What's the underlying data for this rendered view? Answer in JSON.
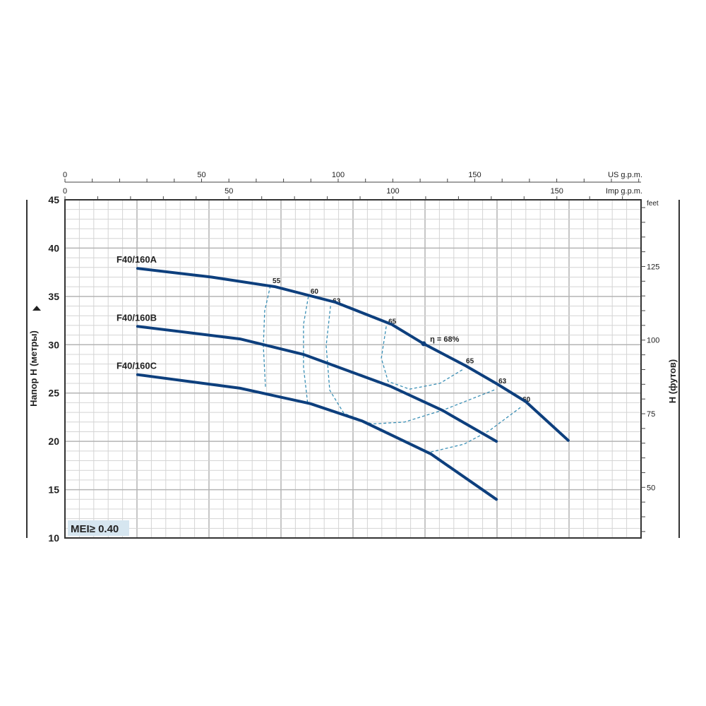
{
  "chart_data": {
    "type": "line",
    "title": "",
    "xlabel_top_1": "US g.p.m.",
    "xlabel_top_2": "Imp g.p.m.",
    "ylabel_left": "Напор H (метры)",
    "ylabel_right": "H (футов)",
    "ylabel_right_unit": "feet",
    "x_unit": "US g.p.m.",
    "xlim": [
      0,
      211
    ],
    "ylim": [
      10,
      45
    ],
    "grid": true,
    "us_gpm_ticks": [
      "0",
      "50",
      "100",
      "150"
    ],
    "imp_gpm_ticks": [
      "0",
      "50",
      "100",
      "150"
    ],
    "y_ticks": [
      "10",
      "15",
      "20",
      "25",
      "30",
      "35",
      "40",
      "45"
    ],
    "feet_ticks": [
      "50",
      "75",
      "100",
      "125"
    ],
    "series": [
      {
        "name": "F40/160A",
        "points": [
          [
            26.6,
            37.9
          ],
          [
            53.7,
            37.0
          ],
          [
            77,
            36.0
          ],
          [
            99,
            34.4
          ],
          [
            119.6,
            32.1
          ],
          [
            131.3,
            30.1
          ],
          [
            146.8,
            27.8
          ],
          [
            158.4,
            25.9
          ],
          [
            168.7,
            24.1
          ],
          [
            184.2,
            20.1
          ]
        ]
      },
      {
        "name": "F40/160B",
        "points": [
          [
            26.6,
            31.9
          ],
          [
            64.1,
            30.6
          ],
          [
            87.3,
            29.0
          ],
          [
            119.1,
            25.7
          ],
          [
            138.2,
            23.2
          ],
          [
            157.9,
            20.0
          ]
        ]
      },
      {
        "name": "F40/160C",
        "points": [
          [
            26.6,
            26.9
          ],
          [
            64.1,
            25.5
          ],
          [
            89.9,
            23.9
          ],
          [
            108.8,
            22.1
          ],
          [
            133.9,
            18.7
          ],
          [
            157.9,
            14.0
          ]
        ]
      }
    ],
    "efficiency_curves": [
      {
        "label": "55",
        "points": [
          [
            75.2,
            36.1
          ],
          [
            73.1,
            33.5
          ],
          [
            72.6,
            29.9
          ],
          [
            73.4,
            25.5
          ]
        ]
      },
      {
        "label": "60",
        "points": [
          [
            89.1,
            35.0
          ],
          [
            87.3,
            32.1
          ],
          [
            87.3,
            27.7
          ],
          [
            88.9,
            23.8
          ]
        ]
      },
      {
        "label": "63",
        "label_right": "63",
        "points": [
          [
            97.2,
            34.0
          ],
          [
            95.6,
            29.9
          ],
          [
            96.9,
            25.3
          ],
          [
            102.1,
            22.9
          ],
          [
            112.4,
            21.8
          ],
          [
            124.3,
            22.0
          ],
          [
            139.0,
            23.3
          ],
          [
            157.9,
            25.4
          ]
        ]
      },
      {
        "label": "65",
        "label_right": "65",
        "points": [
          [
            117.6,
            31.9
          ],
          [
            115.8,
            28.6
          ],
          [
            118.3,
            26.2
          ],
          [
            126.1,
            25.4
          ],
          [
            137.2,
            26.0
          ],
          [
            146.0,
            27.5
          ]
        ]
      },
      {
        "label_right": "60",
        "points": [
          [
            133.9,
            18.9
          ],
          [
            146.0,
            19.7
          ],
          [
            155.3,
            21.1
          ],
          [
            166.7,
            23.5
          ]
        ]
      }
    ],
    "best_efficiency": {
      "label": "η = 68%",
      "point": [
        131.3,
        30.1
      ]
    },
    "badge": "MEI≥ 0.40",
    "colors": {
      "curve": "#0d3f7d",
      "efficiency": "#3a8fb5",
      "grid": "#c8c8c8",
      "badge_bg": "#d6e6f0"
    }
  }
}
